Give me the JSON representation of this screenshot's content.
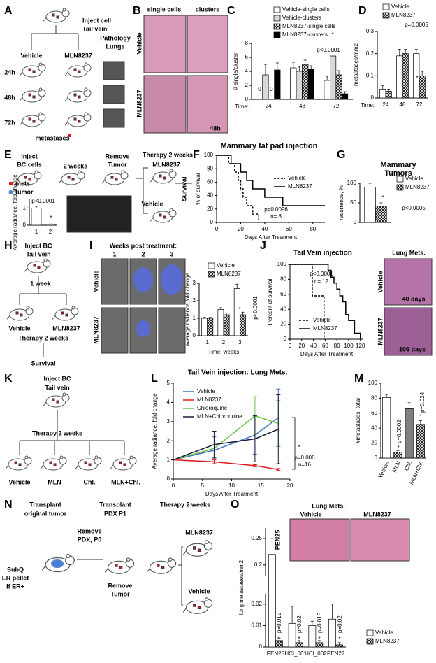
{
  "letters": [
    "A",
    "B",
    "C",
    "D",
    "E",
    "F",
    "G",
    "H",
    "I",
    "J",
    "K",
    "L",
    "M",
    "N",
    "O"
  ],
  "diagrams": {
    "A": [
      "Inject cell",
      "Tail vein",
      "Vehicle",
      "MLN8237",
      "Pathology",
      "Lungs",
      "24h",
      "48h",
      "72h",
      "metastases"
    ],
    "B": [
      "single cells",
      "clusters",
      "Vehicle",
      "MLN8237",
      "48h"
    ],
    "E": [
      "Inject",
      "BC cells",
      "2 weeks",
      "Remove",
      "Tumor",
      "Therapy 2 weeks",
      "MLN8237",
      "Vehicle",
      "Survival",
      "mets.",
      "tumor"
    ],
    "H": [
      "Inject BC",
      "Tail vein",
      "1 week",
      "Vehicle",
      "MLN8237",
      "Therapy 2 weeks",
      "Survival"
    ],
    "I": [
      "Weeks post treatment:",
      "1",
      "2",
      "3",
      "Vehicle",
      "MLN8237"
    ],
    "J": [
      "Lung Mets.",
      "Vehicle",
      "MLN8237",
      "40 days",
      "106 days"
    ],
    "K": [
      "Inject BC",
      "Tail vein",
      "Therapy 2 weeks",
      "Vehicle",
      "MLN",
      "Chl.",
      "MLN+Chl."
    ],
    "N": [
      "Transplant",
      "original tumor",
      "Remove",
      "PDX, P0",
      "Transplant",
      "PDX P1",
      "Therapy 2 weeks",
      "Remove",
      "Tumor",
      "MLN8237",
      "Vehicle",
      "SubQ",
      "ER pellet",
      "if ER+"
    ],
    "O": [
      "Lung Mets.",
      "Vehicle",
      "MLN8237",
      "PEN25"
    ]
  },
  "chart_data": [
    {
      "type": "bar",
      "xlabel": "Time:",
      "ylabel": "# single/cluster",
      "categories": [
        "24",
        "48",
        "72"
      ],
      "ylim": [
        0,
        8
      ],
      "yticks": [
        0,
        2,
        4,
        6,
        8
      ],
      "series": [
        {
          "name": "Vehicle-single cells",
          "color": "#ffffff",
          "hatch": false,
          "values": [
            0,
            4.5,
            2.7
          ],
          "errors": [
            0,
            0.8,
            0.6
          ]
        },
        {
          "name": "Vehicle-clusters",
          "color": "#d9d9d9",
          "hatch": false,
          "values": [
            3.5,
            4,
            6.2
          ],
          "errors": [
            1.5,
            0.7,
            0.6
          ]
        },
        {
          "name": "MLN8237-single cells",
          "color": "#ffffff",
          "hatch": true,
          "values": [
            0,
            5,
            3.5
          ],
          "errors": [
            0,
            0.6,
            0.6
          ]
        },
        {
          "name": "MLN8237-clusters",
          "color": "#000000",
          "hatch": false,
          "values": [
            4.2,
            4.3,
            0.8
          ],
          "errors": [
            1,
            0.5,
            0.3
          ]
        }
      ],
      "annotations": [
        "p<0.0001",
        "*"
      ]
    },
    {
      "type": "bar",
      "xlabel": "Time:",
      "ylabel": "metastases/mm2",
      "categories": [
        "24",
        "48",
        "72"
      ],
      "ylim": [
        0,
        0.3
      ],
      "yticks": [
        0,
        0.1,
        0.2,
        0.3
      ],
      "series": [
        {
          "name": "Vehicle",
          "color": "#ffffff",
          "hatch": false,
          "values": [
            0.04,
            0.19,
            0.2
          ],
          "errors": [
            0.015,
            0.03,
            0.02
          ]
        },
        {
          "name": "MLN8237",
          "color": "#ffffff",
          "hatch": true,
          "values": [
            0.03,
            0.2,
            0.1
          ],
          "errors": [
            0.01,
            0.02,
            0.02
          ]
        }
      ],
      "annotations": [
        "p=0.0005",
        "*"
      ]
    },
    {
      "type": "bar",
      "ylabel": "Average radiance, fold change",
      "categories": [
        "1",
        "2"
      ],
      "ylim": [
        0,
        1.5
      ],
      "yticks": [
        0,
        1
      ],
      "series": [
        {
          "color": "#ffffff",
          "hatch": false,
          "values": [
            1,
            0.05
          ],
          "errors": [
            0.1,
            0.02
          ]
        }
      ],
      "annotations": [
        "p<0.0001",
        "*"
      ]
    },
    {
      "type": "survival",
      "title": "Mammary fat pad injection",
      "xlabel": "Days After Treatment",
      "ylabel": "% of survival",
      "xlim": [
        0,
        90
      ],
      "xticks": [
        0,
        20,
        40,
        60,
        80
      ],
      "ylim": [
        0,
        100
      ],
      "yticks": [
        0,
        20,
        40,
        60,
        80,
        100
      ],
      "series": [
        {
          "name": "Vehicle",
          "color": "#000000",
          "dash": true,
          "x": [
            0,
            10,
            15,
            18,
            20,
            22,
            25,
            30,
            35
          ],
          "values": [
            100,
            87.5,
            75,
            62.5,
            50,
            37.5,
            25,
            12.5,
            0
          ]
        },
        {
          "name": "MLN8237",
          "color": "#000000",
          "dash": false,
          "x": [
            0,
            12,
            20,
            25,
            30,
            40,
            55,
            90
          ],
          "values": [
            100,
            87.5,
            75,
            62.5,
            50,
            37.5,
            25,
            25
          ]
        }
      ],
      "annotations": [
        "p=0.0096",
        "n= 8"
      ]
    },
    {
      "type": "bar",
      "title": "Mammary Tumors",
      "ylabel": "recurrence, %",
      "categories": [
        null
      ],
      "ylim": [
        0,
        100
      ],
      "yticks": [
        0,
        50,
        100
      ],
      "series": [
        {
          "name": "Vehicle",
          "color": "#ffffff",
          "hatch": false,
          "values": [
            90
          ],
          "errors": [
            10
          ]
        },
        {
          "name": "MLN8237",
          "color": "#ffffff",
          "hatch": true,
          "values": [
            42
          ],
          "errors": [
            8
          ]
        }
      ],
      "annotations": [
        "p<0.0005",
        "*"
      ]
    },
    {
      "type": "bar",
      "xlabel": "Time, weeks",
      "ylabel": "average radiance,fold change",
      "categories": [
        "1",
        "2",
        "3"
      ],
      "ylim": [
        0,
        3
      ],
      "yticks": [
        0,
        1,
        2,
        3
      ],
      "series": [
        {
          "name": "Vehicle",
          "color": "#ffffff",
          "hatch": false,
          "values": [
            1,
            1.5,
            2.7
          ],
          "errors": [
            0.05,
            0.1,
            0.25
          ]
        },
        {
          "name": "MLN8237",
          "color": "#ffffff",
          "hatch": true,
          "values": [
            1,
            1.2,
            1.2
          ],
          "errors": [
            0.05,
            0.1,
            0.15
          ]
        }
      ],
      "annotations": [
        "p<0.0001",
        "*"
      ]
    },
    {
      "type": "survival",
      "title": "Tail Vein injection",
      "xlabel": "Days After Treatment",
      "ylabel": "Percent of survival",
      "xlim": [
        0,
        125
      ],
      "xticks": [
        0,
        20,
        40,
        60,
        80,
        100,
        120
      ],
      "ylim": [
        0,
        100
      ],
      "yticks": [
        0,
        20,
        40,
        60,
        80,
        100
      ],
      "series": [
        {
          "name": "Vehicle",
          "color": "#000000",
          "dash": true,
          "x": [
            0,
            38,
            58
          ],
          "values": [
            100,
            58,
            0
          ]
        },
        {
          "name": "MLN8237",
          "color": "#000000",
          "dash": false,
          "x": [
            0,
            65,
            70,
            75,
            80,
            85,
            90,
            95,
            100,
            110,
            120
          ],
          "values": [
            100,
            92,
            83,
            75,
            67,
            58,
            50,
            33,
            25,
            8,
            0
          ]
        }
      ],
      "annotations": [
        "p<0.0001",
        "n= 12"
      ]
    },
    {
      "type": "line",
      "title": "Tail Vein injection: Lung Mets.",
      "xlabel": "Days After Treatment",
      "ylabel": "Average radiance, fold change",
      "x": [
        0,
        7,
        14,
        18
      ],
      "xlim": [
        0,
        20
      ],
      "xticks": [
        0,
        5,
        10,
        15,
        20
      ],
      "ylim": [
        0,
        5
      ],
      "yticks": [
        0,
        1,
        2,
        3,
        4,
        5
      ],
      "series": [
        {
          "name": "Vehicle",
          "color": "#4472c4",
          "values": [
            1,
            1.5,
            2.3,
            3.2
          ],
          "errors": [
            0,
            0.7,
            1,
            1.5
          ]
        },
        {
          "name": "MLN8237",
          "color": "#e31a1c",
          "values": [
            1,
            0.9,
            0.7,
            0.5
          ],
          "errors": [
            0,
            0.1,
            0.05,
            0.05
          ]
        },
        {
          "name": "Chloroquine",
          "color": "#6cc24a",
          "values": [
            1,
            1.6,
            3.3,
            2.9
          ],
          "errors": [
            0,
            0.5,
            1,
            1.2
          ]
        },
        {
          "name": "MLN+Chloroquine",
          "color": "#1a1a3a",
          "values": [
            1,
            1.8,
            2.1,
            2.6
          ],
          "errors": [
            0,
            0.7,
            1.2,
            1.8
          ]
        }
      ],
      "annotations": [
        "*",
        "p=0.006",
        "n=16"
      ]
    },
    {
      "type": "bar",
      "ylabel": "#metastases, total",
      "categories": [
        "Vehicle",
        "MLN",
        "Chl.",
        "MLN+Chl."
      ],
      "ylim": [
        0,
        100
      ],
      "yticks": [
        0,
        20,
        40,
        60,
        80,
        100
      ],
      "series": [
        {
          "color": [
            "#ffffff",
            "#ffffff",
            "#808080",
            "#ffffff"
          ],
          "hatch": [
            false,
            true,
            false,
            true
          ],
          "values": [
            81,
            8,
            66,
            45
          ],
          "errors": [
            4,
            2,
            8,
            5
          ]
        }
      ],
      "annotations": [
        "p=0.0002",
        "*",
        "p=0.024",
        "*"
      ]
    },
    {
      "type": "bar",
      "ylabel": "lung metastases/mm2",
      "categories": [
        "PEN25",
        "HCI_001",
        "HCI_002",
        "PEN27"
      ],
      "ylim": [
        0,
        0.27
      ],
      "ybreak": [
        0.025,
        0.18
      ],
      "yticks": [
        0,
        0.01,
        0.02,
        0.2,
        0.25
      ],
      "series": [
        {
          "name": "Vehicle",
          "color": "#ffffff",
          "hatch": false,
          "values": [
            0.22,
            0.011,
            0.01,
            0.013
          ],
          "errors": [
            0.03,
            0.008,
            0.002,
            0.007
          ]
        },
        {
          "name": "MLN8237",
          "color": "#ffffff",
          "hatch": true,
          "values": [
            0.003,
            0.002,
            0.002,
            0.001
          ],
          "errors": [
            0.001,
            0.001,
            0.001,
            0.001
          ]
        }
      ],
      "annotations": [
        "p=0.012",
        "*",
        "p=0.02",
        "*",
        "p=0.015",
        "*",
        "p=0.02",
        "*"
      ]
    }
  ]
}
